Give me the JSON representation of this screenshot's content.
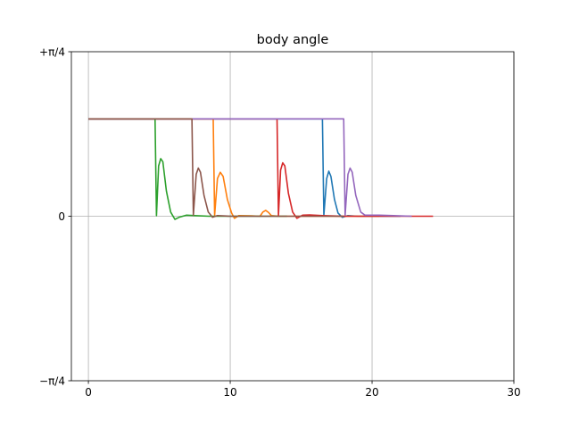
{
  "chart_data": {
    "type": "line",
    "title": "body angle",
    "xlabel": "",
    "ylabel": "",
    "xlim": [
      -1.2,
      30
    ],
    "ylim": [
      -0.7854,
      0.7854
    ],
    "grid": true,
    "x_ticks": [
      {
        "value": 0,
        "label": "0"
      },
      {
        "value": 10,
        "label": "10"
      },
      {
        "value": 20,
        "label": "20"
      },
      {
        "value": 30,
        "label": "30"
      }
    ],
    "y_ticks": [
      {
        "value": -0.7854,
        "label": "−π/4"
      },
      {
        "value": 0,
        "label": "0"
      },
      {
        "value": 0.7854,
        "label": "+π/4"
      }
    ],
    "series": [
      {
        "color": "#1f77b4",
        "points": [
          [
            0,
            0.465
          ],
          [
            16.5,
            0.465
          ],
          [
            16.6,
            0.005
          ],
          [
            16.8,
            0.18
          ],
          [
            16.95,
            0.215
          ],
          [
            17.1,
            0.19
          ],
          [
            17.35,
            0.08
          ],
          [
            17.6,
            0.015
          ],
          [
            17.9,
            -0.005
          ],
          [
            18.3,
            0.003
          ],
          [
            19,
            0.0
          ],
          [
            22,
            0.0
          ]
        ]
      },
      {
        "color": "#ff7f0e",
        "points": [
          [
            0,
            0.465
          ],
          [
            8.8,
            0.465
          ],
          [
            8.9,
            0.005
          ],
          [
            9.1,
            0.18
          ],
          [
            9.3,
            0.21
          ],
          [
            9.5,
            0.19
          ],
          [
            9.8,
            0.08
          ],
          [
            10.1,
            0.015
          ],
          [
            10.3,
            -0.01
          ],
          [
            10.6,
            0.003
          ],
          [
            11.5,
            0.002
          ],
          [
            12.1,
            0.0
          ],
          [
            12.3,
            0.02
          ],
          [
            12.5,
            0.028
          ],
          [
            12.7,
            0.018
          ],
          [
            12.9,
            0.003
          ],
          [
            13.4,
            0.0
          ],
          [
            20.5,
            0.0
          ]
        ]
      },
      {
        "color": "#2ca02c",
        "points": [
          [
            0,
            0.465
          ],
          [
            4.7,
            0.465
          ],
          [
            4.8,
            0.003
          ],
          [
            4.95,
            0.24
          ],
          [
            5.1,
            0.275
          ],
          [
            5.25,
            0.26
          ],
          [
            5.5,
            0.12
          ],
          [
            5.8,
            0.02
          ],
          [
            6.1,
            -0.015
          ],
          [
            6.4,
            -0.005
          ],
          [
            6.9,
            0.005
          ],
          [
            7.5,
            0.003
          ],
          [
            8.5,
            0.0
          ],
          [
            14,
            0.0
          ]
        ]
      },
      {
        "color": "#d62728",
        "points": [
          [
            0,
            0.465
          ],
          [
            13.3,
            0.465
          ],
          [
            13.4,
            0.003
          ],
          [
            13.55,
            0.22
          ],
          [
            13.7,
            0.255
          ],
          [
            13.85,
            0.24
          ],
          [
            14.1,
            0.11
          ],
          [
            14.4,
            0.02
          ],
          [
            14.7,
            -0.01
          ],
          [
            15.1,
            0.005
          ],
          [
            15.6,
            0.006
          ],
          [
            16.5,
            0.003
          ],
          [
            18,
            0.0
          ],
          [
            24.3,
            0.0
          ]
        ]
      },
      {
        "color": "#9467bd",
        "points": [
          [
            0,
            0.465
          ],
          [
            18,
            0.465
          ],
          [
            18.1,
            0.005
          ],
          [
            18.3,
            0.2
          ],
          [
            18.45,
            0.23
          ],
          [
            18.6,
            0.21
          ],
          [
            18.85,
            0.1
          ],
          [
            19.2,
            0.02
          ],
          [
            19.5,
            0.005
          ],
          [
            20.5,
            0.005
          ],
          [
            21.5,
            0.003
          ],
          [
            22.8,
            0.0
          ]
        ]
      },
      {
        "color": "#8c564b",
        "points": [
          [
            0,
            0.465
          ],
          [
            7.3,
            0.465
          ],
          [
            7.4,
            0.005
          ],
          [
            7.6,
            0.2
          ],
          [
            7.75,
            0.23
          ],
          [
            7.9,
            0.21
          ],
          [
            8.15,
            0.1
          ],
          [
            8.45,
            0.02
          ],
          [
            8.75,
            -0.005
          ],
          [
            9.1,
            0.003
          ],
          [
            10,
            0.0
          ],
          [
            18,
            0.0
          ]
        ]
      }
    ]
  }
}
